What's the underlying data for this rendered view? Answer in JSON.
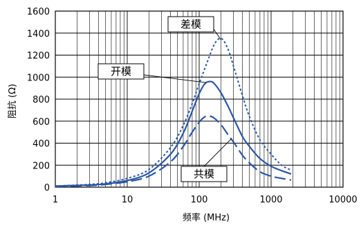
{
  "chart_data": {
    "type": "line",
    "xlabel": "频率 (MHz)",
    "ylabel": "阻抗 (Ω)",
    "xscale": "log",
    "xlim": [
      1,
      10000
    ],
    "ylim": [
      0,
      1600
    ],
    "x_ticks": [
      "1",
      "10",
      "100",
      "1000",
      "10000"
    ],
    "y_ticks": [
      "0",
      "200",
      "400",
      "600",
      "800",
      "1000",
      "1200",
      "1400",
      "1600"
    ],
    "grid": true,
    "line_color": "#2a55a8",
    "series": [
      {
        "name": "差模",
        "style": "dotted",
        "x": [
          1,
          3,
          5,
          10,
          20,
          40,
          60,
          80,
          100,
          130,
          160,
          190,
          220,
          260,
          300,
          400,
          500,
          700,
          1000,
          1400,
          1900
        ],
        "y": [
          10,
          25,
          40,
          80,
          160,
          360,
          560,
          760,
          940,
          1140,
          1290,
          1350,
          1330,
          1230,
          1100,
          830,
          640,
          430,
          300,
          200,
          155
        ]
      },
      {
        "name": "开模",
        "style": "solid",
        "x": [
          1,
          3,
          5,
          10,
          20,
          40,
          60,
          80,
          100,
          120,
          140,
          160,
          200,
          250,
          300,
          400,
          500,
          700,
          1000,
          1400,
          1900
        ],
        "y": [
          10,
          20,
          30,
          60,
          130,
          300,
          490,
          690,
          850,
          940,
          960,
          945,
          860,
          740,
          630,
          460,
          370,
          260,
          190,
          150,
          120
        ]
      },
      {
        "name": "共模",
        "style": "dashed",
        "x": [
          1,
          3,
          5,
          10,
          20,
          40,
          60,
          80,
          100,
          120,
          140,
          160,
          200,
          250,
          300,
          400,
          500,
          700,
          1000,
          1400,
          1900
        ],
        "y": [
          5,
          15,
          25,
          50,
          100,
          230,
          370,
          500,
          590,
          640,
          645,
          630,
          570,
          480,
          410,
          290,
          220,
          140,
          100,
          80,
          65
        ]
      }
    ],
    "annotations": [
      {
        "text": "差模",
        "series": 0
      },
      {
        "text": "开模",
        "series": 1
      },
      {
        "text": "共模",
        "series": 2
      }
    ]
  }
}
